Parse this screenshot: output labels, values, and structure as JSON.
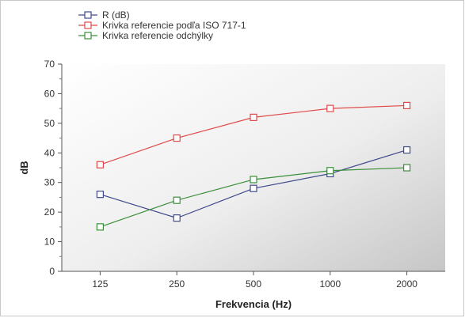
{
  "chart_data": {
    "type": "line",
    "title": "",
    "xlabel": "Frekvencia (Hz)",
    "ylabel": "dB",
    "categories": [
      "125",
      "250",
      "500",
      "1000",
      "2000"
    ],
    "ylim": [
      0,
      70
    ],
    "yticks": [
      0,
      10,
      20,
      30,
      40,
      50,
      60,
      70
    ],
    "grid": false,
    "legend_position": "top-left",
    "plot_background": "gradient-gray",
    "series": [
      {
        "name": "R (dB)",
        "color": "#404a8c",
        "marker": "square",
        "values": [
          26,
          18,
          28,
          33,
          41
        ]
      },
      {
        "name": "Krivka referencie podľa  ISO 717-1",
        "color": "#e04a4a",
        "marker": "square",
        "values": [
          36,
          45,
          52,
          55,
          56
        ]
      },
      {
        "name": "Krivka referencie  odchýlky",
        "color": "#3a8f3a",
        "marker": "square",
        "values": [
          15,
          24,
          31,
          34,
          35
        ]
      }
    ]
  }
}
